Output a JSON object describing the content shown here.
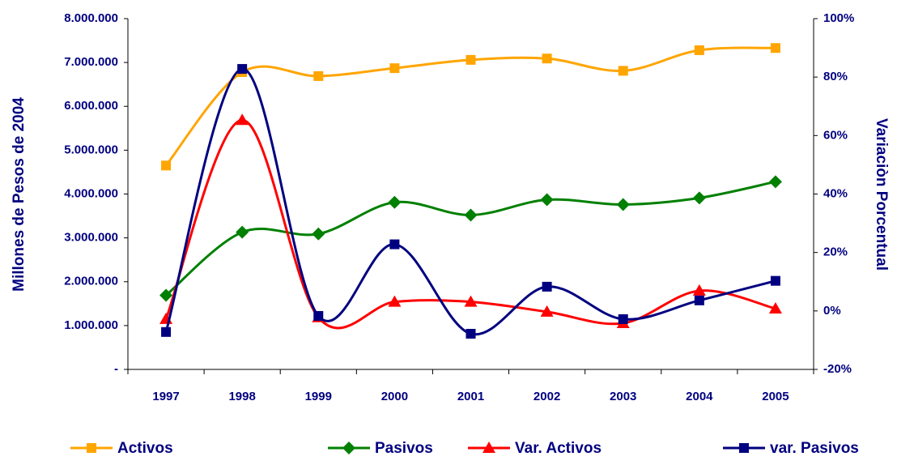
{
  "chart_data": {
    "type": "line",
    "y_label": "Millones de Pesos de 2004",
    "y2_label": "Variaciòn Porcentual",
    "categories": [
      "1997",
      "1998",
      "1999",
      "2000",
      "2001",
      "2002",
      "2003",
      "2004",
      "2005"
    ],
    "ylim": [
      0,
      8000000
    ],
    "yticks": [
      {
        "value": 0,
        "label": "-"
      },
      {
        "value": 1000000,
        "label": "1.000.000"
      },
      {
        "value": 2000000,
        "label": "2.000.000"
      },
      {
        "value": 3000000,
        "label": "3.000.000"
      },
      {
        "value": 4000000,
        "label": "4.000.000"
      },
      {
        "value": 5000000,
        "label": "5.000.000"
      },
      {
        "value": 6000000,
        "label": "6.000.000"
      },
      {
        "value": 7000000,
        "label": "7.000.000"
      },
      {
        "value": 8000000,
        "label": "8.000.000"
      }
    ],
    "y2lim": [
      -20,
      100
    ],
    "y2ticks": [
      {
        "value": -20,
        "label": "-20%"
      },
      {
        "value": 0,
        "label": "0%"
      },
      {
        "value": 20,
        "label": "20%"
      },
      {
        "value": 40,
        "label": "40%"
      },
      {
        "value": 60,
        "label": "60%"
      },
      {
        "value": 80,
        "label": "80%"
      },
      {
        "value": 100,
        "label": "100%"
      }
    ],
    "legend": "bottom",
    "series": [
      {
        "name": "Activos",
        "color": "#FFA500",
        "marker": "square",
        "values": [
          4650000,
          6780000,
          6690000,
          6870000,
          7060000,
          7090000,
          6810000,
          7280000,
          7330000
        ]
      },
      {
        "name": "Pasivos",
        "color": "#008000",
        "marker": "diamond",
        "values": [
          1690000,
          3130000,
          3090000,
          3810000,
          3520000,
          3870000,
          3760000,
          3910000,
          4280000
        ]
      },
      {
        "name": "Var. Activos",
        "color": "#FF0000",
        "marker": "triangle",
        "axis": "y2",
        "values": [
          -2.8,
          65.3,
          -2.2,
          3.1,
          3.1,
          -0.3,
          -4.2,
          6.9,
          0.8
        ]
      },
      {
        "name": "var. Pasivos",
        "color": "#000080",
        "marker": "square",
        "axis": "y2",
        "values": [
          -7.2,
          82.8,
          -1.7,
          22.8,
          -7.8,
          8.3,
          -2.8,
          3.6,
          10.3
        ]
      }
    ]
  }
}
